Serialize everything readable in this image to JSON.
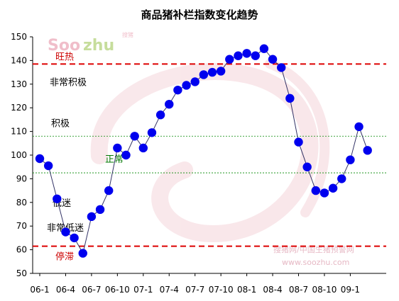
{
  "chart_data": {
    "type": "line",
    "title": "商品猪补栏指数变化趋势",
    "xlabel": "",
    "ylabel": "",
    "ylim": [
      50,
      150
    ],
    "yticks": [
      50,
      60,
      70,
      80,
      90,
      100,
      110,
      120,
      130,
      140,
      150
    ],
    "x_tick_labels": [
      "06-1",
      "06-4",
      "06-7",
      "06-10",
      "07-1",
      "07-4",
      "07-7",
      "07-10",
      "08-1",
      "08-4",
      "08-7",
      "08-10",
      "09-1"
    ],
    "x_tick_index": [
      0,
      3,
      6,
      9,
      12,
      15,
      18,
      21,
      24,
      27,
      30,
      33,
      36
    ],
    "grid": false,
    "series": [
      {
        "values": [
          98.5,
          95.5,
          81.5,
          67.5,
          65,
          58.5,
          74,
          77,
          85,
          103,
          100,
          108,
          103,
          109.5,
          117,
          121.5,
          127.5,
          129.5,
          131,
          134,
          135,
          135.5,
          140.5,
          142,
          143,
          142,
          145,
          140.5,
          137,
          124,
          105.5,
          95,
          85,
          84,
          86,
          90,
          98,
          112,
          102
        ]
      }
    ],
    "reference_lines": [
      {
        "value": 138.5,
        "style": "red-dashed",
        "label": "旺热"
      },
      {
        "value": 108,
        "style": "green-dotted",
        "label": "积极"
      },
      {
        "value": 92.5,
        "style": "green-dotted",
        "label": "正常"
      },
      {
        "value": 61.5,
        "style": "red-dashed",
        "label": "停滞"
      }
    ],
    "zone_labels": [
      {
        "value": 131,
        "label": "非常积极"
      },
      {
        "value": 80,
        "label": "低迷"
      },
      {
        "value": 69.5,
        "label": "非常低迷"
      }
    ],
    "colors": {
      "marker": "#0000ee",
      "line": "#333366",
      "red_line": "#dd0000",
      "green_line": "#008800",
      "red_label": "#cc0000",
      "green_label": "#007700",
      "black_label": "#000000"
    }
  },
  "watermark": {
    "logo_part1": "Soo",
    "logo_part2": "zhu",
    "logo_small": "搜猪",
    "line1": "搜猪网/中国生猪预警网",
    "line2": "www.soozhu.com"
  }
}
